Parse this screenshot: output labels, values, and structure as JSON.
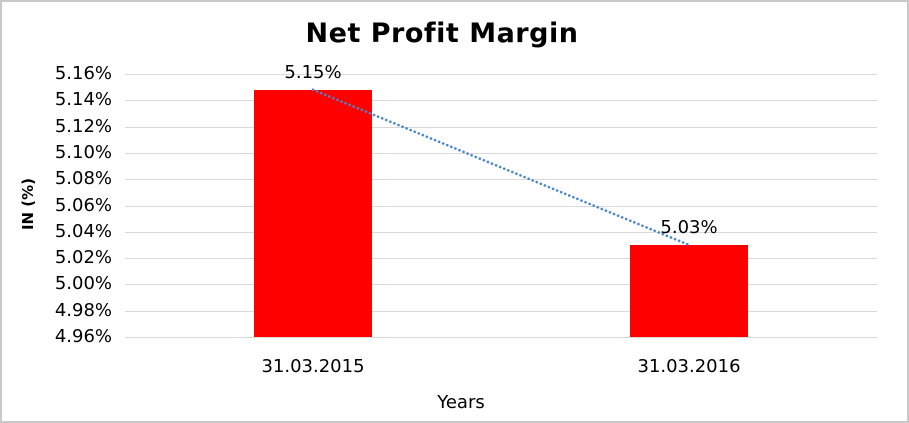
{
  "chart_data": {
    "type": "bar",
    "title": "Net Profit Margin",
    "xlabel": "Years",
    "ylabel": "IN (%)",
    "categories": [
      "31.03.2015",
      "31.03.2016"
    ],
    "values": [
      5.148,
      5.03
    ],
    "data_labels": [
      "5.15%",
      "5.03%"
    ],
    "y_ticks": [
      "5.16%",
      "5.14%",
      "5.12%",
      "5.10%",
      "5.08%",
      "5.06%",
      "5.04%",
      "5.02%",
      "5.00%",
      "4.98%",
      "4.96%"
    ],
    "ylim": [
      4.96,
      5.16
    ],
    "grid": true,
    "legend": "none",
    "bar_color": "#ff0000",
    "gridline_color": "#d9d9d9",
    "frame_border_color": "#c9c9c9",
    "trendline": {
      "type": "linear",
      "style": "dotted",
      "color": "#4a86c8"
    }
  }
}
